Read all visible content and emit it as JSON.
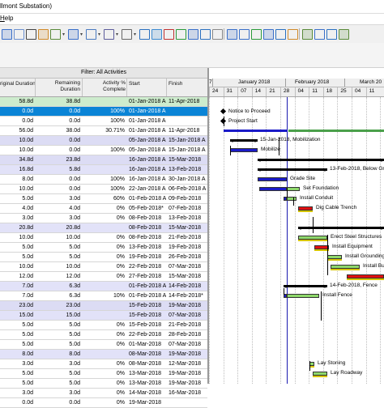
{
  "title": "llmont Substation)",
  "menu": {
    "help_prefix": "",
    "help_underlined": "H",
    "help_rest": "elp"
  },
  "toolbar_icons": [
    "layout-icon",
    "columns-icon",
    "print-icon",
    "paint-icon",
    "bar-chart-icon",
    "dropdown-icon",
    "group-icon",
    "dropdown-icon",
    "table-icon",
    "dropdown-icon",
    "filter-icon",
    "dropdown-icon",
    "hash-icon",
    "dropdown-icon",
    "spreadsheet-icon",
    "timescale-icon",
    "schedule-icon",
    "level-icon",
    "sort-icon",
    "network-icon",
    "link-icon",
    "zoom-in-icon",
    "zoom-out-icon",
    "fit-icon",
    "scroll-icon",
    "goto-icon",
    "move-icon",
    "expand-icon",
    "compress-icon",
    "progress-icon",
    "attach-icon"
  ],
  "filter_label": "Filter: All Activities",
  "columns": {
    "original_duration": "riginal Duration",
    "remaining_duration_line1": "Remaining",
    "remaining_duration_line2": "Duration",
    "activity_pct_line1": "Activity %",
    "activity_pct_line2": "Complete",
    "start": "Start",
    "finish": "Finish"
  },
  "timeline": {
    "year_prefix": "7",
    "months": [
      "January 2018",
      "February 2018",
      "March 20"
    ],
    "weeks": [
      "24",
      "31",
      "07",
      "14",
      "21",
      "28",
      "04",
      "11",
      "18",
      "25",
      "04",
      "11"
    ]
  },
  "rows": [
    {
      "orig": "58.8d",
      "rem": "38.8d",
      "pct": "",
      "start": "01-Jan-2018 A",
      "finish": "11-Apr-2018",
      "style": "wbs"
    },
    {
      "orig": "0.0d",
      "rem": "0.0d",
      "pct": "100%",
      "start": "01-Jan-2018 A",
      "finish": "",
      "style": "selected"
    },
    {
      "orig": "0.0d",
      "rem": "0.0d",
      "pct": "100%",
      "start": "01-Jan-2018 A",
      "finish": "",
      "style": "normal"
    },
    {
      "orig": "56.0d",
      "rem": "38.0d",
      "pct": "30.71%",
      "start": "01-Jan-2018 A",
      "finish": "11-Apr-2018",
      "style": "normal"
    },
    {
      "orig": "10.0d",
      "rem": "0.0d",
      "pct": "",
      "start": "05-Jan-2018 A",
      "finish": "15-Jan-2018 A",
      "style": "wbs2"
    },
    {
      "orig": "10.0d",
      "rem": "0.0d",
      "pct": "100%",
      "start": "05-Jan-2018 A",
      "finish": "15-Jan-2018 A",
      "style": "normal"
    },
    {
      "orig": "34.8d",
      "rem": "23.8d",
      "pct": "",
      "start": "16-Jan-2018 A",
      "finish": "15-Mar-2018",
      "style": "wbs2"
    },
    {
      "orig": "16.8d",
      "rem": "5.8d",
      "pct": "",
      "start": "16-Jan-2018 A",
      "finish": "13-Feb-2018",
      "style": "wbs3"
    },
    {
      "orig": "8.0d",
      "rem": "0.0d",
      "pct": "100%",
      "start": "16-Jan-2018 A",
      "finish": "30-Jan-2018 A",
      "style": "normal"
    },
    {
      "orig": "10.0d",
      "rem": "0.0d",
      "pct": "100%",
      "start": "22-Jan-2018 A",
      "finish": "06-Feb-2018 A",
      "style": "normal"
    },
    {
      "orig": "5.0d",
      "rem": "3.0d",
      "pct": "60%",
      "start": "01-Feb-2018 A",
      "finish": "09-Feb-2018",
      "style": "normal"
    },
    {
      "orig": "4.0d",
      "rem": "4.0d",
      "pct": "0%",
      "start": "05-Feb-2018*",
      "finish": "07-Feb-2018",
      "style": "normal"
    },
    {
      "orig": "3.0d",
      "rem": "3.0d",
      "pct": "0%",
      "start": "08-Feb-2018",
      "finish": "13-Feb-2018",
      "style": "normal"
    },
    {
      "orig": "20.8d",
      "rem": "20.8d",
      "pct": "",
      "start": "08-Feb-2018",
      "finish": "15-Mar-2018",
      "style": "wbs3"
    },
    {
      "orig": "10.0d",
      "rem": "10.0d",
      "pct": "0%",
      "start": "08-Feb-2018",
      "finish": "21-Feb-2018",
      "style": "normal"
    },
    {
      "orig": "5.0d",
      "rem": "5.0d",
      "pct": "0%",
      "start": "13-Feb-2018",
      "finish": "19-Feb-2018",
      "style": "normal"
    },
    {
      "orig": "5.0d",
      "rem": "5.0d",
      "pct": "0%",
      "start": "19-Feb-2018",
      "finish": "26-Feb-2018",
      "style": "normal"
    },
    {
      "orig": "10.0d",
      "rem": "10.0d",
      "pct": "0%",
      "start": "22-Feb-2018",
      "finish": "07-Mar-2018",
      "style": "normal"
    },
    {
      "orig": "12.0d",
      "rem": "12.0d",
      "pct": "0%",
      "start": "27-Feb-2018",
      "finish": "15-Mar-2018",
      "style": "normal"
    },
    {
      "orig": "7.0d",
      "rem": "6.3d",
      "pct": "",
      "start": "01-Feb-2018 A",
      "finish": "14-Feb-2018",
      "style": "wbs3"
    },
    {
      "orig": "7.0d",
      "rem": "6.3d",
      "pct": "10%",
      "start": "01-Feb-2018 A",
      "finish": "14-Feb-2018*",
      "style": "normal"
    },
    {
      "orig": "23.0d",
      "rem": "23.0d",
      "pct": "",
      "start": "15-Feb-2018",
      "finish": "19-Mar-2018",
      "style": "wbs2"
    },
    {
      "orig": "15.0d",
      "rem": "15.0d",
      "pct": "",
      "start": "15-Feb-2018",
      "finish": "07-Mar-2018",
      "style": "wbs3"
    },
    {
      "orig": "5.0d",
      "rem": "5.0d",
      "pct": "0%",
      "start": "15-Feb-2018",
      "finish": "21-Feb-2018",
      "style": "normal"
    },
    {
      "orig": "5.0d",
      "rem": "5.0d",
      "pct": "0%",
      "start": "22-Feb-2018",
      "finish": "28-Feb-2018",
      "style": "normal"
    },
    {
      "orig": "5.0d",
      "rem": "5.0d",
      "pct": "0%",
      "start": "01-Mar-2018",
      "finish": "07-Mar-2018",
      "style": "normal"
    },
    {
      "orig": "8.0d",
      "rem": "8.0d",
      "pct": "",
      "start": "08-Mar-2018",
      "finish": "19-Mar-2018",
      "style": "wbs3"
    },
    {
      "orig": "3.0d",
      "rem": "3.0d",
      "pct": "0%",
      "start": "08-Mar-2018",
      "finish": "12-Mar-2018",
      "style": "normal"
    },
    {
      "orig": "5.0d",
      "rem": "5.0d",
      "pct": "0%",
      "start": "13-Mar-2018",
      "finish": "19-Mar-2018",
      "style": "normal"
    },
    {
      "orig": "5.0d",
      "rem": "5.0d",
      "pct": "0%",
      "start": "13-Mar-2018",
      "finish": "19-Mar-2018",
      "style": "normal"
    },
    {
      "orig": "3.0d",
      "rem": "3.0d",
      "pct": "0%",
      "start": "14-Mar-2018",
      "finish": "16-Mar-2018",
      "style": "normal"
    },
    {
      "orig": "0.0d",
      "rem": "0.0d",
      "pct": "0%",
      "start": "19-Mar-2018",
      "finish": "",
      "style": "normal"
    }
  ],
  "gantt": [
    {
      "type": "none"
    },
    {
      "type": "milestone",
      "label": "Notice to Proceed"
    },
    {
      "type": "milestone",
      "label": "Project Start"
    },
    {
      "type": "longbar",
      "label": ""
    },
    {
      "type": "summary",
      "label": "15-Jan-2018, Mobilization"
    },
    {
      "type": "actual",
      "label": "Mobilize"
    },
    {
      "type": "summary",
      "label": ""
    },
    {
      "type": "summary",
      "label": "13-Feb-2018, Below Grade"
    },
    {
      "type": "actual",
      "label": "Grade Site"
    },
    {
      "type": "actual",
      "label": "Set Foundation"
    },
    {
      "type": "mixed",
      "label": "Install Conduit"
    },
    {
      "type": "critical",
      "label": "Dig Cable Trench"
    },
    {
      "type": "none"
    },
    {
      "type": "summary",
      "label": ""
    },
    {
      "type": "green",
      "label": "Erect Steel Structures"
    },
    {
      "type": "critical",
      "label": "Install Equipment"
    },
    {
      "type": "green",
      "label": "Install Grounding"
    },
    {
      "type": "green",
      "label": "Install Bu"
    },
    {
      "type": "critical",
      "label": "La"
    },
    {
      "type": "summary",
      "label": "14-Feb-2018, Fence"
    },
    {
      "type": "mixed",
      "label": "Install Fence"
    },
    {
      "type": "none"
    },
    {
      "type": "none"
    },
    {
      "type": "none"
    },
    {
      "type": "none"
    },
    {
      "type": "none"
    },
    {
      "type": "none"
    },
    {
      "type": "green",
      "label": "Lay Stoning"
    },
    {
      "type": "green",
      "label": "Lay Roadway"
    },
    {
      "type": "none"
    },
    {
      "type": "none"
    },
    {
      "type": "none"
    }
  ],
  "colors": {
    "wbs": "#cdeccd",
    "wbs2": "#dcdcf4",
    "wbs3": "#e2e2f8",
    "selected": "#0a84d6",
    "actual": "#1a1ac8",
    "remaining": "#8ed86b",
    "critical": "#e01010",
    "summary": "#000000",
    "datadate": "#1a1ab0"
  }
}
